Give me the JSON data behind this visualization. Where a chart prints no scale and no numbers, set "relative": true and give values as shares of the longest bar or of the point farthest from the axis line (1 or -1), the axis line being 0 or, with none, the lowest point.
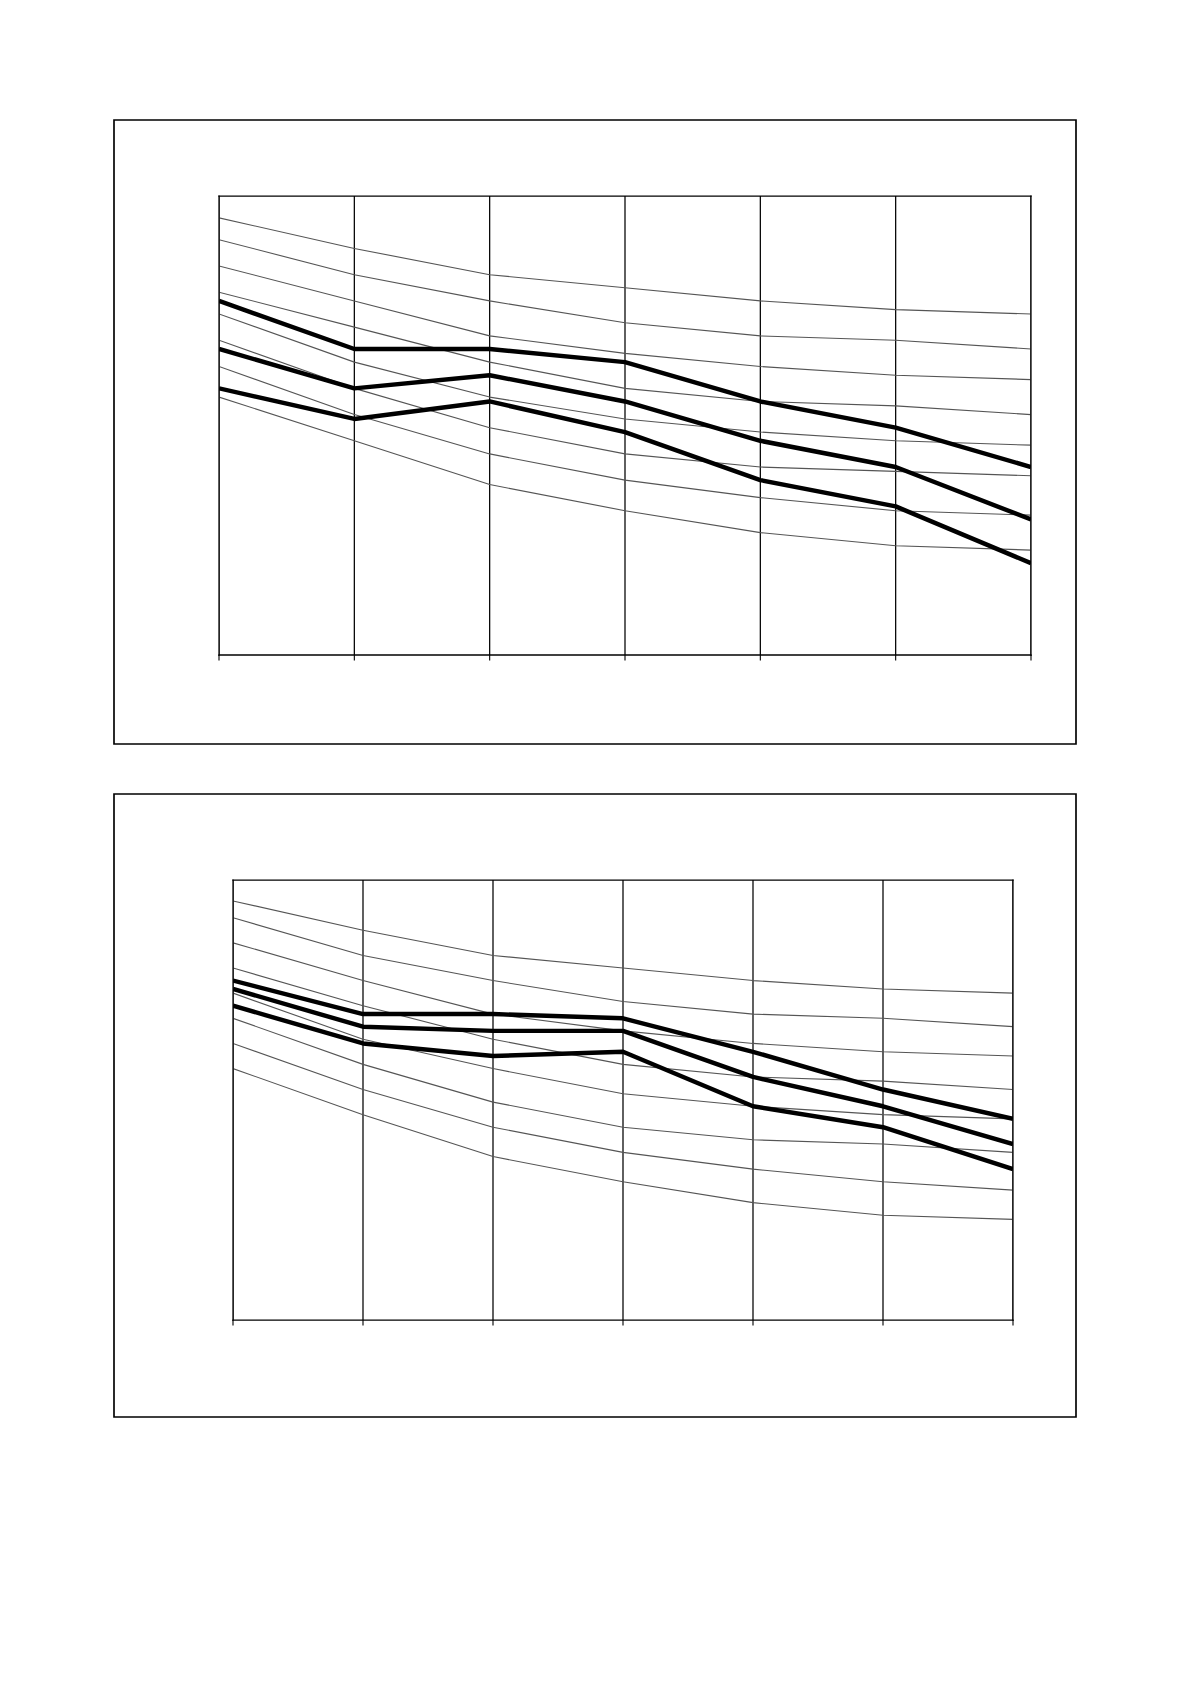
{
  "chart_data": [
    {
      "type": "line",
      "relative": true,
      "grid": "x",
      "marker": "none",
      "line_style": "solid",
      "categories": [
        null,
        null,
        null,
        null,
        null,
        null,
        null
      ],
      "series": [
        {
          "color": "#555555",
          "values": [
            1.0,
            0.93,
            0.87,
            0.84,
            0.81,
            0.79,
            0.78
          ]
        },
        {
          "color": "#555555",
          "values": [
            0.95,
            0.87,
            0.81,
            0.76,
            0.73,
            0.72,
            0.7
          ]
        },
        {
          "color": "#555555",
          "values": [
            0.89,
            0.81,
            0.73,
            0.69,
            0.66,
            0.64,
            0.63
          ]
        },
        {
          "color": "#555555",
          "values": [
            0.83,
            0.75,
            0.67,
            0.61,
            0.58,
            0.57,
            0.55
          ]
        },
        {
          "color": "#555555",
          "values": [
            0.78,
            0.67,
            0.59,
            0.54,
            0.51,
            0.49,
            0.48
          ]
        },
        {
          "color": "#555555",
          "values": [
            0.72,
            0.61,
            0.52,
            0.46,
            0.43,
            0.42,
            0.41
          ]
        },
        {
          "color": "#555555",
          "values": [
            0.66,
            0.55,
            0.46,
            0.4,
            0.36,
            0.33,
            0.32
          ]
        },
        {
          "color": "#555555",
          "values": [
            0.59,
            0.49,
            0.39,
            0.33,
            0.28,
            0.25,
            0.24
          ]
        },
        {
          "color": "#000000",
          "values": [
            0.81,
            0.7,
            0.7,
            0.67,
            0.58,
            0.52,
            0.43
          ]
        },
        {
          "color": "#000000",
          "values": [
            0.7,
            0.61,
            0.64,
            0.58,
            0.49,
            0.43,
            0.31
          ]
        },
        {
          "color": "#000000",
          "values": [
            0.61,
            0.54,
            0.58,
            0.51,
            0.4,
            0.34,
            0.21
          ]
        }
      ]
    },
    {
      "type": "line",
      "relative": true,
      "grid": "x",
      "marker": "none",
      "line_style": "solid",
      "categories": [
        null,
        null,
        null,
        null,
        null,
        null,
        null
      ],
      "series": [
        {
          "color": "#555555",
          "values": [
            1.0,
            0.93,
            0.87,
            0.84,
            0.81,
            0.79,
            0.78
          ]
        },
        {
          "color": "#555555",
          "values": [
            0.96,
            0.87,
            0.81,
            0.76,
            0.73,
            0.72,
            0.7
          ]
        },
        {
          "color": "#555555",
          "values": [
            0.9,
            0.81,
            0.73,
            0.69,
            0.66,
            0.64,
            0.63
          ]
        },
        {
          "color": "#555555",
          "values": [
            0.84,
            0.75,
            0.67,
            0.61,
            0.58,
            0.57,
            0.55
          ]
        },
        {
          "color": "#555555",
          "values": [
            0.78,
            0.67,
            0.6,
            0.54,
            0.51,
            0.49,
            0.48
          ]
        },
        {
          "color": "#555555",
          "values": [
            0.72,
            0.61,
            0.52,
            0.46,
            0.43,
            0.42,
            0.4
          ]
        },
        {
          "color": "#555555",
          "values": [
            0.66,
            0.55,
            0.46,
            0.4,
            0.36,
            0.33,
            0.31
          ]
        },
        {
          "color": "#555555",
          "values": [
            0.6,
            0.49,
            0.39,
            0.33,
            0.28,
            0.25,
            0.24
          ]
        },
        {
          "color": "#000000",
          "values": [
            0.81,
            0.73,
            0.73,
            0.72,
            0.64,
            0.55,
            0.48
          ]
        },
        {
          "color": "#000000",
          "values": [
            0.79,
            0.7,
            0.69,
            0.69,
            0.58,
            0.51,
            0.42
          ]
        },
        {
          "color": "#000000",
          "values": [
            0.75,
            0.66,
            0.63,
            0.64,
            0.51,
            0.46,
            0.36
          ]
        }
      ]
    }
  ]
}
